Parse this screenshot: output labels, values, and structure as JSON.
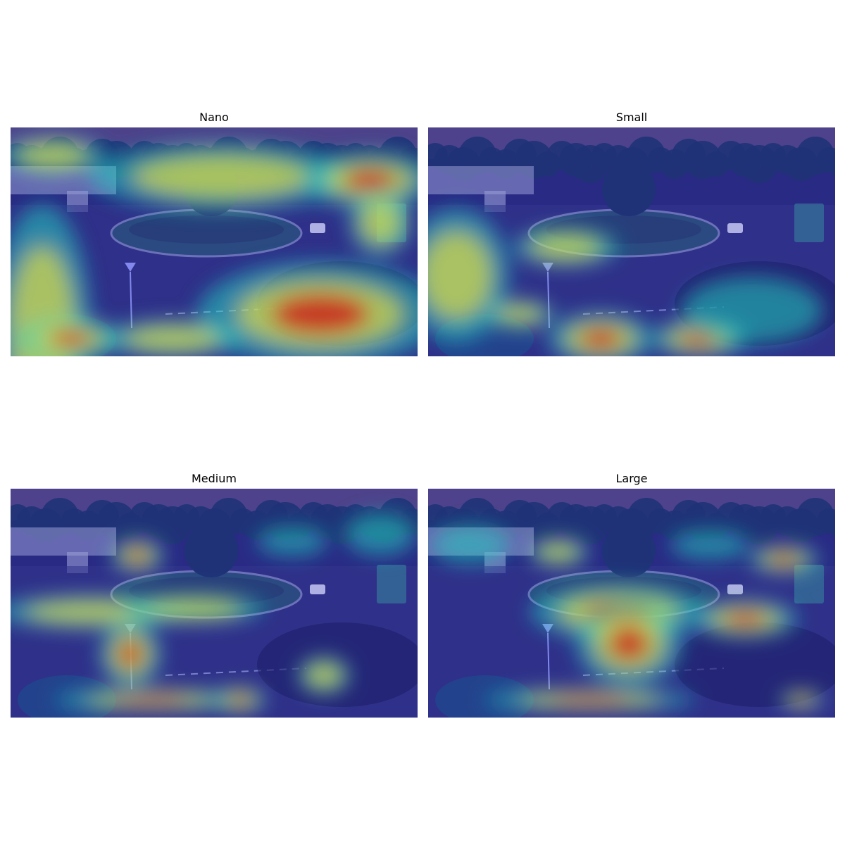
{
  "figure": {
    "panels": [
      {
        "id": "nano",
        "title": "Nano"
      },
      {
        "id": "small",
        "title": "Small"
      },
      {
        "id": "medium",
        "title": "Medium"
      },
      {
        "id": "large",
        "title": "Large"
      }
    ]
  },
  "colors": {
    "sky": "#5f4f78",
    "scene_base": "#2d2f6e",
    "road": "#3a3d7a",
    "tree_dark": "#1f3a5c",
    "building": "#c8cde0",
    "heat_low": "#2020c0",
    "heat_mid": "#20d0c0",
    "heat_high_mid": "#f0e040",
    "heat_high": "#d01010"
  }
}
